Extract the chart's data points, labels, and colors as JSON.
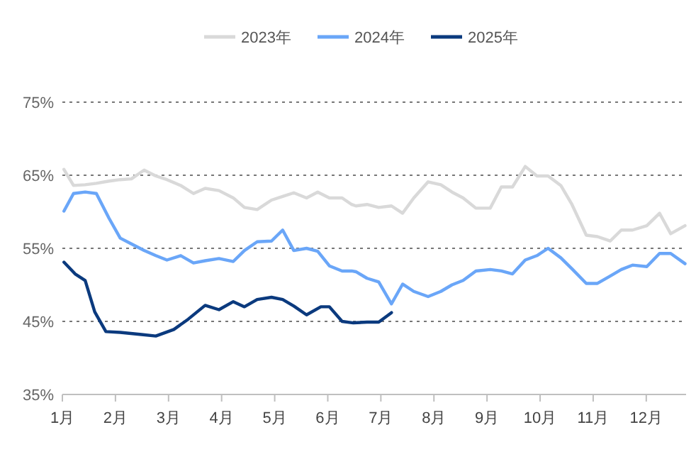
{
  "chart_data": {
    "type": "line",
    "grid": "y",
    "legend": "top",
    "xlim": [
      1,
      12.75
    ],
    "ylim": [
      35,
      75
    ],
    "xticks": [
      {
        "value": 1,
        "label": "1月"
      },
      {
        "value": 2,
        "label": "2月"
      },
      {
        "value": 3,
        "label": "3月"
      },
      {
        "value": 4,
        "label": "4月"
      },
      {
        "value": 5,
        "label": "5月"
      },
      {
        "value": 6,
        "label": "6月"
      },
      {
        "value": 7,
        "label": "7月"
      },
      {
        "value": 8,
        "label": "8月"
      },
      {
        "value": 9,
        "label": "9月"
      },
      {
        "value": 10,
        "label": "10月"
      },
      {
        "value": 11,
        "label": "11月"
      },
      {
        "value": 12,
        "label": "12月"
      }
    ],
    "yticks": [
      {
        "value": 35,
        "label": "35%"
      },
      {
        "value": 45,
        "label": "45%"
      },
      {
        "value": 55,
        "label": "55%"
      },
      {
        "value": 65,
        "label": "65%"
      },
      {
        "value": 75,
        "label": "75%"
      }
    ],
    "series": [
      {
        "name": "2023年",
        "color": "#d9d9d9",
        "x": [
          1.03,
          1.21,
          1.43,
          1.64,
          1.88,
          2.09,
          2.3,
          2.54,
          2.76,
          2.97,
          3.23,
          3.47,
          3.69,
          3.95,
          4.22,
          4.43,
          4.67,
          4.94,
          5.15,
          5.36,
          5.6,
          5.81,
          6.03,
          6.27,
          6.45,
          6.53,
          6.74,
          6.96,
          7.2,
          7.41,
          7.62,
          7.89,
          8.13,
          8.34,
          8.55,
          8.79,
          9.06,
          9.27,
          9.48,
          9.72,
          9.94,
          10.15,
          10.39,
          10.6,
          10.87,
          11.08,
          11.32,
          11.53,
          11.74,
          12.01,
          12.25,
          12.46,
          12.73
        ],
        "values": [
          65.8,
          63.6,
          63.7,
          63.9,
          64.2,
          64.4,
          64.5,
          65.7,
          64.9,
          64.4,
          63.6,
          62.5,
          63.2,
          62.9,
          61.9,
          60.6,
          60.3,
          61.6,
          62.1,
          62.6,
          61.9,
          62.7,
          61.9,
          61.9,
          61.0,
          60.8,
          61.0,
          60.6,
          60.8,
          59.8,
          61.9,
          64.1,
          63.7,
          62.7,
          61.9,
          60.5,
          60.5,
          63.4,
          63.4,
          66.2,
          64.9,
          64.9,
          63.6,
          61.0,
          56.8,
          56.6,
          56.0,
          57.5,
          57.5,
          58.1,
          59.8,
          57.0,
          58.1
        ]
      },
      {
        "name": "2024年",
        "color": "#6aa6f8",
        "x": [
          1.03,
          1.21,
          1.43,
          1.64,
          1.88,
          2.09,
          2.3,
          2.54,
          2.76,
          2.97,
          3.23,
          3.47,
          3.69,
          3.95,
          4.22,
          4.43,
          4.67,
          4.94,
          5.15,
          5.36,
          5.6,
          5.81,
          6.03,
          6.27,
          6.45,
          6.53,
          6.74,
          6.96,
          7.2,
          7.41,
          7.62,
          7.89,
          8.13,
          8.34,
          8.55,
          8.79,
          9.06,
          9.27,
          9.48,
          9.72,
          9.94,
          10.15,
          10.39,
          10.6,
          10.87,
          11.08,
          11.32,
          11.53,
          11.74,
          12.01,
          12.25,
          12.46,
          12.73
        ],
        "values": [
          60.1,
          62.5,
          62.7,
          62.5,
          59.1,
          56.4,
          55.6,
          54.7,
          54.0,
          53.4,
          54.0,
          53.0,
          53.3,
          53.6,
          53.2,
          54.7,
          55.9,
          56.0,
          57.5,
          54.7,
          55.0,
          54.6,
          52.6,
          51.9,
          51.9,
          51.8,
          50.9,
          50.4,
          47.4,
          50.1,
          49.1,
          48.4,
          49.1,
          50.0,
          50.6,
          51.9,
          52.1,
          51.9,
          51.5,
          53.4,
          54.0,
          55.0,
          53.7,
          52.2,
          50.2,
          50.2,
          51.2,
          52.1,
          52.7,
          52.5,
          54.3,
          54.3,
          52.9
        ]
      },
      {
        "name": "2025年",
        "color": "#0b3a7e",
        "x": [
          1.03,
          1.24,
          1.43,
          1.61,
          1.82,
          2.09,
          2.49,
          2.76,
          3.1,
          3.37,
          3.69,
          3.95,
          4.22,
          4.43,
          4.67,
          4.94,
          5.15,
          5.36,
          5.6,
          5.87,
          6.03,
          6.27,
          6.48,
          6.74,
          6.96,
          7.2
        ],
        "values": [
          53.1,
          51.5,
          50.6,
          46.3,
          43.6,
          43.5,
          43.2,
          43.0,
          43.9,
          45.3,
          47.2,
          46.6,
          47.7,
          47.0,
          48.0,
          48.3,
          48.0,
          47.1,
          45.9,
          47.0,
          47.0,
          45.0,
          44.8,
          44.9,
          44.9,
          46.2
        ]
      }
    ]
  }
}
